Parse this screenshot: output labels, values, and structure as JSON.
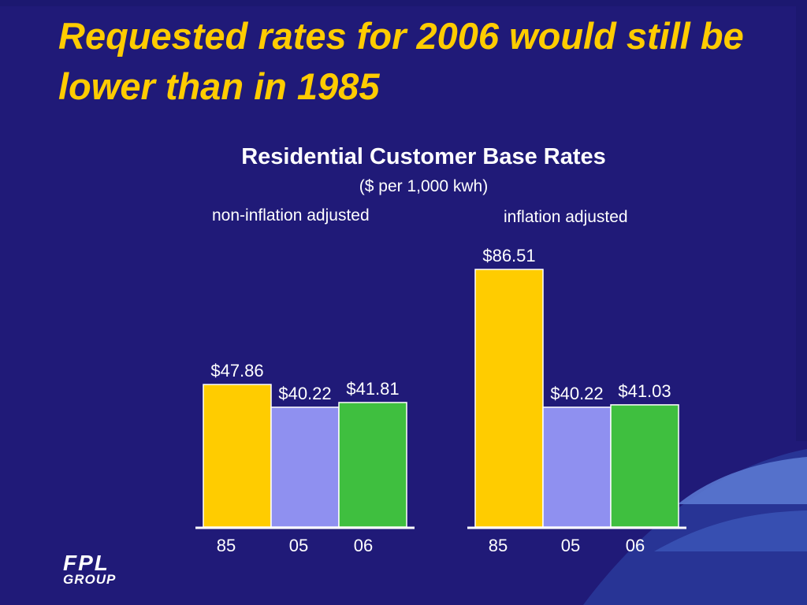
{
  "slide": {
    "headline": "Requested rates for 2006 would still be lower than in 1985"
  },
  "logo": {
    "line1": "FPL",
    "line2": "GROUP"
  },
  "colors": {
    "background": "#201a78",
    "headline": "#ffcc00",
    "bar_85": "#ffcc00",
    "bar_05": "#8f90f0",
    "bar_06": "#3fbf3f"
  },
  "chart_data": {
    "type": "bar",
    "title": "Residential Customer Base Rates",
    "subtitle": "($ per 1,000 kwh)",
    "categories": [
      "85",
      "05",
      "06"
    ],
    "groups": [
      {
        "name": "non-inflation adjusted",
        "values": [
          47.86,
          40.22,
          41.81
        ],
        "labels": [
          "$47.86",
          "$40.22",
          "$41.81"
        ]
      },
      {
        "name": "inflation adjusted",
        "values": [
          86.51,
          40.22,
          41.03
        ],
        "labels": [
          "$86.51",
          "$40.22",
          "$41.03"
        ]
      }
    ],
    "ylim": [
      0,
      86.51
    ],
    "grid": false,
    "legend": "none"
  }
}
